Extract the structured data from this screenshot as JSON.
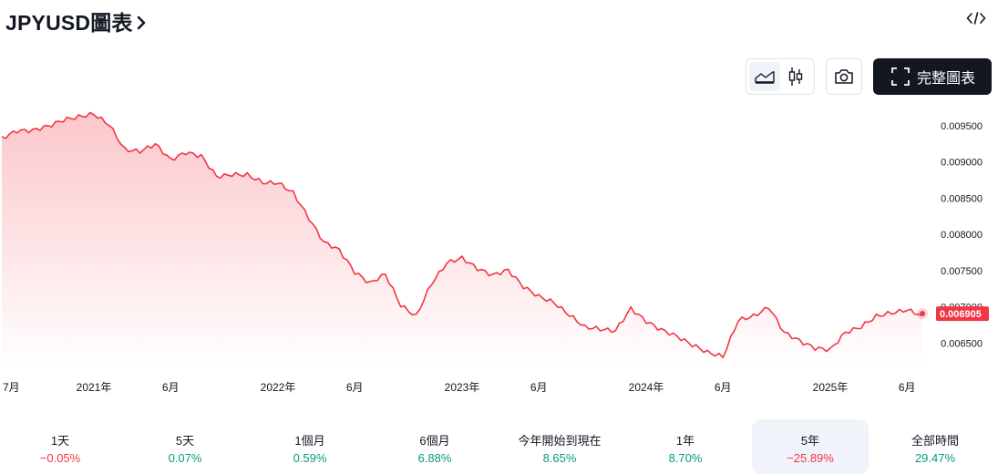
{
  "header": {
    "title": "JPYUSD圖表",
    "chevron_icon": "chevron-right-icon",
    "embed_icon": "code-embed-icon"
  },
  "toolbar": {
    "line_chart_icon": "area-chart-icon",
    "candle_chart_icon": "candlestick-icon",
    "snapshot_icon": "camera-icon",
    "fullscreen_icon": "fullscreen-icon",
    "fullscreen_label": "完整圖表"
  },
  "chart_data": {
    "type": "area",
    "series": [
      {
        "x": [
          "2020-07",
          "2020-08",
          "2020-09",
          "2020-10",
          "2020-11",
          "2020-12",
          "2021-01",
          "2021-02",
          "2021-03",
          "2021-04",
          "2021-05",
          "2021-06",
          "2021-07",
          "2021-08",
          "2021-09",
          "2021-10",
          "2021-11",
          "2021-12",
          "2022-01",
          "2022-02",
          "2022-03",
          "2022-04",
          "2022-05",
          "2022-06",
          "2022-07",
          "2022-08",
          "2022-09",
          "2022-10",
          "2022-11",
          "2022-12",
          "2023-01",
          "2023-02",
          "2023-03",
          "2023-04",
          "2023-05",
          "2023-06",
          "2023-07",
          "2023-08",
          "2023-09",
          "2023-10",
          "2023-11",
          "2023-12",
          "2024-01",
          "2024-02",
          "2024-03",
          "2024-04",
          "2024-05",
          "2024-06",
          "2024-07",
          "2024-08",
          "2024-09",
          "2024-10",
          "2024-11",
          "2024-12",
          "2025-01",
          "2025-02",
          "2025-03",
          "2025-04",
          "2025-05",
          "2025-06",
          "2025-07"
        ],
        "values": [
          0.00935,
          0.0094,
          0.00945,
          0.0095,
          0.00955,
          0.00965,
          0.00965,
          0.0095,
          0.0092,
          0.00912,
          0.00925,
          0.00905,
          0.0091,
          0.0091,
          0.0088,
          0.0088,
          0.00885,
          0.0087,
          0.0087,
          0.0086,
          0.0082,
          0.0079,
          0.0078,
          0.00745,
          0.00735,
          0.00745,
          0.007,
          0.0069,
          0.0073,
          0.0076,
          0.0077,
          0.0075,
          0.00745,
          0.00752,
          0.00725,
          0.00717,
          0.00705,
          0.00687,
          0.00675,
          0.00667,
          0.00667,
          0.007,
          0.00677,
          0.0067,
          0.0066,
          0.00645,
          0.0064,
          0.0063,
          0.0068,
          0.0069,
          0.00697,
          0.00665,
          0.00655,
          0.0064,
          0.00643,
          0.00665,
          0.0067,
          0.0069,
          0.0069,
          0.00695,
          0.006905
        ]
      }
    ],
    "last_value_label": "0.006905",
    "y_ticks": [
      0.0065,
      0.007,
      0.0075,
      0.008,
      0.0085,
      0.009,
      0.0095
    ],
    "y_tick_labels": [
      "0.006500",
      "0.007000",
      "0.007500",
      "0.008000",
      "0.008500",
      "0.009000",
      "0.009500"
    ],
    "ylim": [
      0.00614,
      0.00985
    ],
    "x_ticks": [
      "2020-07",
      "2021-01",
      "2021-06",
      "2022-01",
      "2022-06",
      "2023-01",
      "2023-06",
      "2024-01",
      "2024-06",
      "2025-01",
      "2025-06"
    ],
    "x_tick_labels": [
      "7月",
      "2021年",
      "6月",
      "2022年",
      "6月",
      "2023年",
      "6月",
      "2024年",
      "6月",
      "2025年",
      "6月"
    ],
    "line_color": "#f23645",
    "fill_top_color": "#f23645",
    "grid": false
  },
  "periods": [
    {
      "label": "1天",
      "value": "−0.05%",
      "dir": "neg"
    },
    {
      "label": "5天",
      "value": "0.07%",
      "dir": "pos"
    },
    {
      "label": "1個月",
      "value": "0.59%",
      "dir": "pos"
    },
    {
      "label": "6個月",
      "value": "6.88%",
      "dir": "pos"
    },
    {
      "label": "今年開始到現在",
      "value": "8.65%",
      "dir": "pos"
    },
    {
      "label": "1年",
      "value": "8.70%",
      "dir": "pos"
    },
    {
      "label": "5年",
      "value": "−25.89%",
      "dir": "neg",
      "active": true
    },
    {
      "label": "全部時間",
      "value": "29.47%",
      "dir": "pos"
    }
  ],
  "colors": {
    "positive": "#089981",
    "negative": "#f23645",
    "dark": "#131722"
  }
}
